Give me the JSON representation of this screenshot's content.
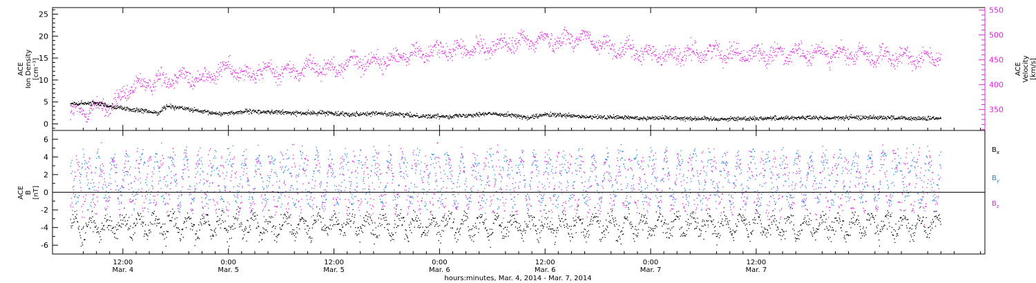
{
  "chart_data": [
    {
      "type": "scatter",
      "panel": "top",
      "ylabel_lines": [
        "ACE",
        "Ion Density",
        "[cm⁻³]"
      ],
      "ylim": [
        -1.5,
        26.5
      ],
      "yticks": [
        0,
        5,
        10,
        15,
        20,
        25
      ],
      "y2label_lines": [
        "ACE",
        "Velocity",
        "[km/s]"
      ],
      "y2lim": [
        308,
        555
      ],
      "y2ticks": [
        350,
        400,
        450,
        500,
        550
      ],
      "series": [
        {
          "color": "#000000",
          "axis": "left",
          "points": [
            [
              0,
              4.6
            ],
            [
              6,
              4.8
            ],
            [
              10,
              4.0
            ],
            [
              14,
              3.3
            ],
            [
              20,
              2.6
            ],
            [
              22,
              4.2
            ],
            [
              26,
              3.6
            ],
            [
              30,
              2.8
            ],
            [
              34,
              2.4
            ],
            [
              40,
              2.9
            ],
            [
              46,
              2.8
            ],
            [
              52,
              2.5
            ],
            [
              58,
              2.6
            ],
            [
              64,
              2.3
            ],
            [
              70,
              2.5
            ],
            [
              76,
              2.1
            ],
            [
              82,
              1.8
            ],
            [
              88,
              1.9
            ],
            [
              94,
              2.4
            ],
            [
              100,
              2.2
            ],
            [
              104,
              1.4
            ],
            [
              108,
              2.2
            ],
            [
              112,
              2.0
            ],
            [
              118,
              1.6
            ],
            [
              124,
              1.6
            ],
            [
              130,
              1.4
            ],
            [
              136,
              1.5
            ],
            [
              142,
              1.3
            ],
            [
              148,
              1.2
            ],
            [
              154,
              1.3
            ],
            [
              160,
              1.4
            ],
            [
              166,
              1.5
            ],
            [
              172,
              1.4
            ],
            [
              178,
              1.5
            ],
            [
              184,
              1.6
            ],
            [
              190,
              1.3
            ],
            [
              196,
              1.3
            ],
            [
              198,
              1.3
            ]
          ]
        },
        {
          "color": "#e020e0",
          "axis": "right",
          "points": [
            [
              0,
              342
            ],
            [
              6,
              355
            ],
            [
              10,
              360
            ],
            [
              14,
              395
            ],
            [
              18,
              405
            ],
            [
              24,
              418
            ],
            [
              30,
              412
            ],
            [
              36,
              435
            ],
            [
              40,
              422
            ],
            [
              46,
              430
            ],
            [
              50,
              425
            ],
            [
              56,
              440
            ],
            [
              60,
              432
            ],
            [
              64,
              448
            ],
            [
              68,
              446
            ],
            [
              72,
              450
            ],
            [
              76,
              460
            ],
            [
              80,
              464
            ],
            [
              84,
              470
            ],
            [
              88,
              470
            ],
            [
              92,
              472
            ],
            [
              96,
              478
            ],
            [
              100,
              484
            ],
            [
              104,
              488
            ],
            [
              108,
              492
            ],
            [
              112,
              490
            ],
            [
              116,
              498
            ],
            [
              120,
              482
            ],
            [
              124,
              474
            ],
            [
              128,
              468
            ],
            [
              132,
              463
            ],
            [
              136,
              460
            ],
            [
              140,
              462
            ],
            [
              144,
              466
            ],
            [
              148,
              468
            ],
            [
              152,
              462
            ],
            [
              156,
              462
            ],
            [
              160,
              465
            ],
            [
              164,
              462
            ],
            [
              168,
              462
            ],
            [
              172,
              466
            ],
            [
              176,
              460
            ],
            [
              180,
              462
            ],
            [
              184,
              456
            ],
            [
              188,
              454
            ],
            [
              192,
              456
            ],
            [
              196,
              456
            ],
            [
              198,
              456
            ]
          ]
        }
      ]
    },
    {
      "type": "scatter",
      "panel": "bottom",
      "ylabel_lines": [
        "ACE",
        "B",
        "[nT]"
      ],
      "ylim": [
        -7,
        7
      ],
      "yticks": [
        -6,
        -4,
        -2,
        0,
        2,
        4,
        6
      ],
      "legend": [
        "Bx",
        "By",
        "Bz"
      ],
      "legend_colors": [
        "#000000",
        "#1a86e0",
        "#e020e0"
      ],
      "series": [
        {
          "name": "Bx",
          "color": "#000000",
          "center": -3.7,
          "amp": 1.0,
          "freq": 1.7,
          "noise": 1.5
        },
        {
          "name": "By",
          "color": "#1a86e0",
          "center": 1.6,
          "amp": 2.6,
          "freq": 1.9,
          "noise": 1.7
        },
        {
          "name": "Bz",
          "color": "#e020e0",
          "center": 1.0,
          "amp": 2.9,
          "freq": 2.3,
          "noise": 1.8
        }
      ]
    }
  ],
  "xaxis": {
    "range_hours": [
      -4,
      208
    ],
    "ticks": [
      {
        "hour": 12,
        "time": "12:00",
        "date": "Mar. 4"
      },
      {
        "hour": 36,
        "time": "0:00",
        "date": "Mar. 5"
      },
      {
        "hour": 60,
        "time": "12:00",
        "date": "Mar. 5"
      },
      {
        "hour": 84,
        "time": "0:00",
        "date": "Mar. 6"
      },
      {
        "hour": 108,
        "time": "12:00",
        "date": "Mar. 6"
      },
      {
        "hour": 132,
        "time": "0:00",
        "date": "Mar. 7"
      },
      {
        "hour": 156,
        "time": "12:00",
        "date": "Mar. 7"
      }
    ],
    "label": "hours:minutes, Mar.  4, 2014 - Mar.  7, 2014"
  }
}
